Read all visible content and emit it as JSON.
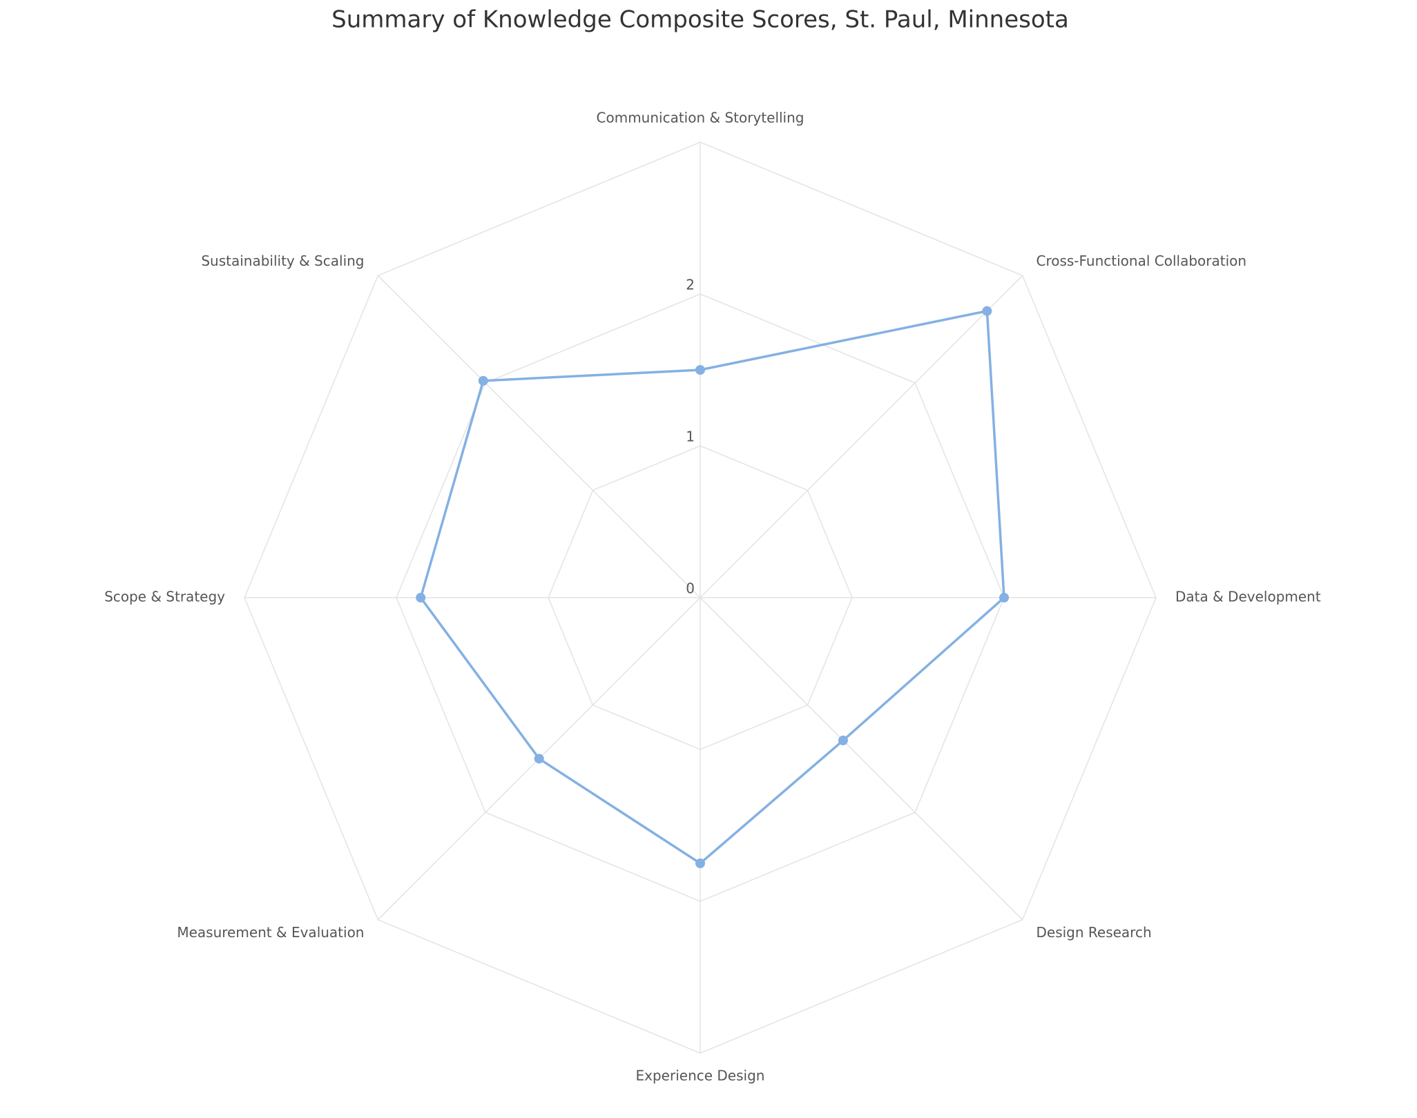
{
  "chart_data": {
    "type": "radar",
    "title": "Summary of Knowledge Composite Scores, St. Paul, Minnesota",
    "categories": [
      "Communication & Storytelling",
      "Cross-Functional Collaboration",
      "Data & Development",
      "Design Research",
      "Experience Design",
      "Measurement & Evaluation",
      "Scope & Strategy",
      "Sustainability & Scaling"
    ],
    "values": [
      1.5,
      2.67,
      2.0,
      1.33,
      1.75,
      1.5,
      1.84,
      2.02
    ],
    "color": "#84b0e3",
    "ylim": [
      0,
      3
    ],
    "yticks": [
      0,
      1,
      2
    ],
    "grid": true
  }
}
